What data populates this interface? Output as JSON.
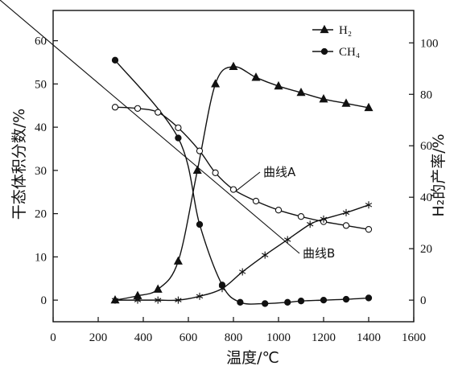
{
  "chart_data": {
    "type": "line",
    "xlabel": "温度/℃",
    "ylabel_left": "干态体积分数/%",
    "ylabel_right": "H₂的产率/%",
    "xlim": [
      0,
      1600
    ],
    "ylim_left": [
      -5,
      67
    ],
    "ylim_right": [
      -8.4,
      112.6
    ],
    "x_ticks": [
      "0",
      "200",
      "400",
      "600",
      "800",
      "1000",
      "1200",
      "1400",
      "1600"
    ],
    "y_left_ticks": [
      "0",
      "10",
      "20",
      "30",
      "40",
      "50",
      "60"
    ],
    "y_right_ticks": [
      "0",
      "20",
      "40",
      "60",
      "80",
      "100"
    ],
    "legend": {
      "placement": "top-right",
      "entries": [
        {
          "label": "H₂",
          "marker": "triangle"
        },
        {
          "label": "CH₄",
          "marker": "circle"
        }
      ]
    },
    "annotations": [
      {
        "text": "曲线A",
        "target_series": "曲线A"
      },
      {
        "text": "曲线B",
        "target_series": "曲线B"
      }
    ],
    "series": [
      {
        "name": "H₂",
        "axis": "left",
        "marker": "triangle-filled",
        "x": [
          275,
          375,
          465,
          555,
          640,
          720,
          800,
          900,
          1000,
          1100,
          1200,
          1300,
          1400
        ],
        "y": [
          0,
          1,
          2.5,
          9,
          30,
          50,
          54,
          51.5,
          49.5,
          48,
          46.5,
          45.5,
          44.5
        ]
      },
      {
        "name": "CH₄",
        "axis": "left",
        "marker": "circle-filled",
        "x": [
          275,
          555,
          650,
          750,
          830,
          940,
          1040,
          1100,
          1200,
          1300,
          1400
        ],
        "y": [
          55.5,
          37.5,
          17.5,
          3.5,
          -0.5,
          -0.8,
          -0.5,
          -0.2,
          0,
          0.2,
          0.5
        ]
      },
      {
        "name": "曲线A",
        "axis": "right",
        "marker": "circle-open",
        "x": [
          275,
          375,
          465,
          555,
          650,
          720,
          800,
          900,
          1000,
          1100,
          1200,
          1300,
          1400
        ],
        "y": [
          75,
          74.5,
          73,
          67,
          58,
          49.5,
          43,
          38.5,
          35,
          32.5,
          30.5,
          29,
          27.5
        ]
      },
      {
        "name": "曲线B",
        "axis": "right",
        "marker": "star",
        "x": [
          275,
          375,
          465,
          555,
          650,
          750,
          840,
          940,
          1040,
          1140,
          1200,
          1300,
          1400
        ],
        "y": [
          0,
          0,
          0,
          0,
          1.5,
          4.5,
          11,
          17.5,
          23.5,
          29.5,
          31.5,
          34,
          37
        ]
      }
    ]
  }
}
